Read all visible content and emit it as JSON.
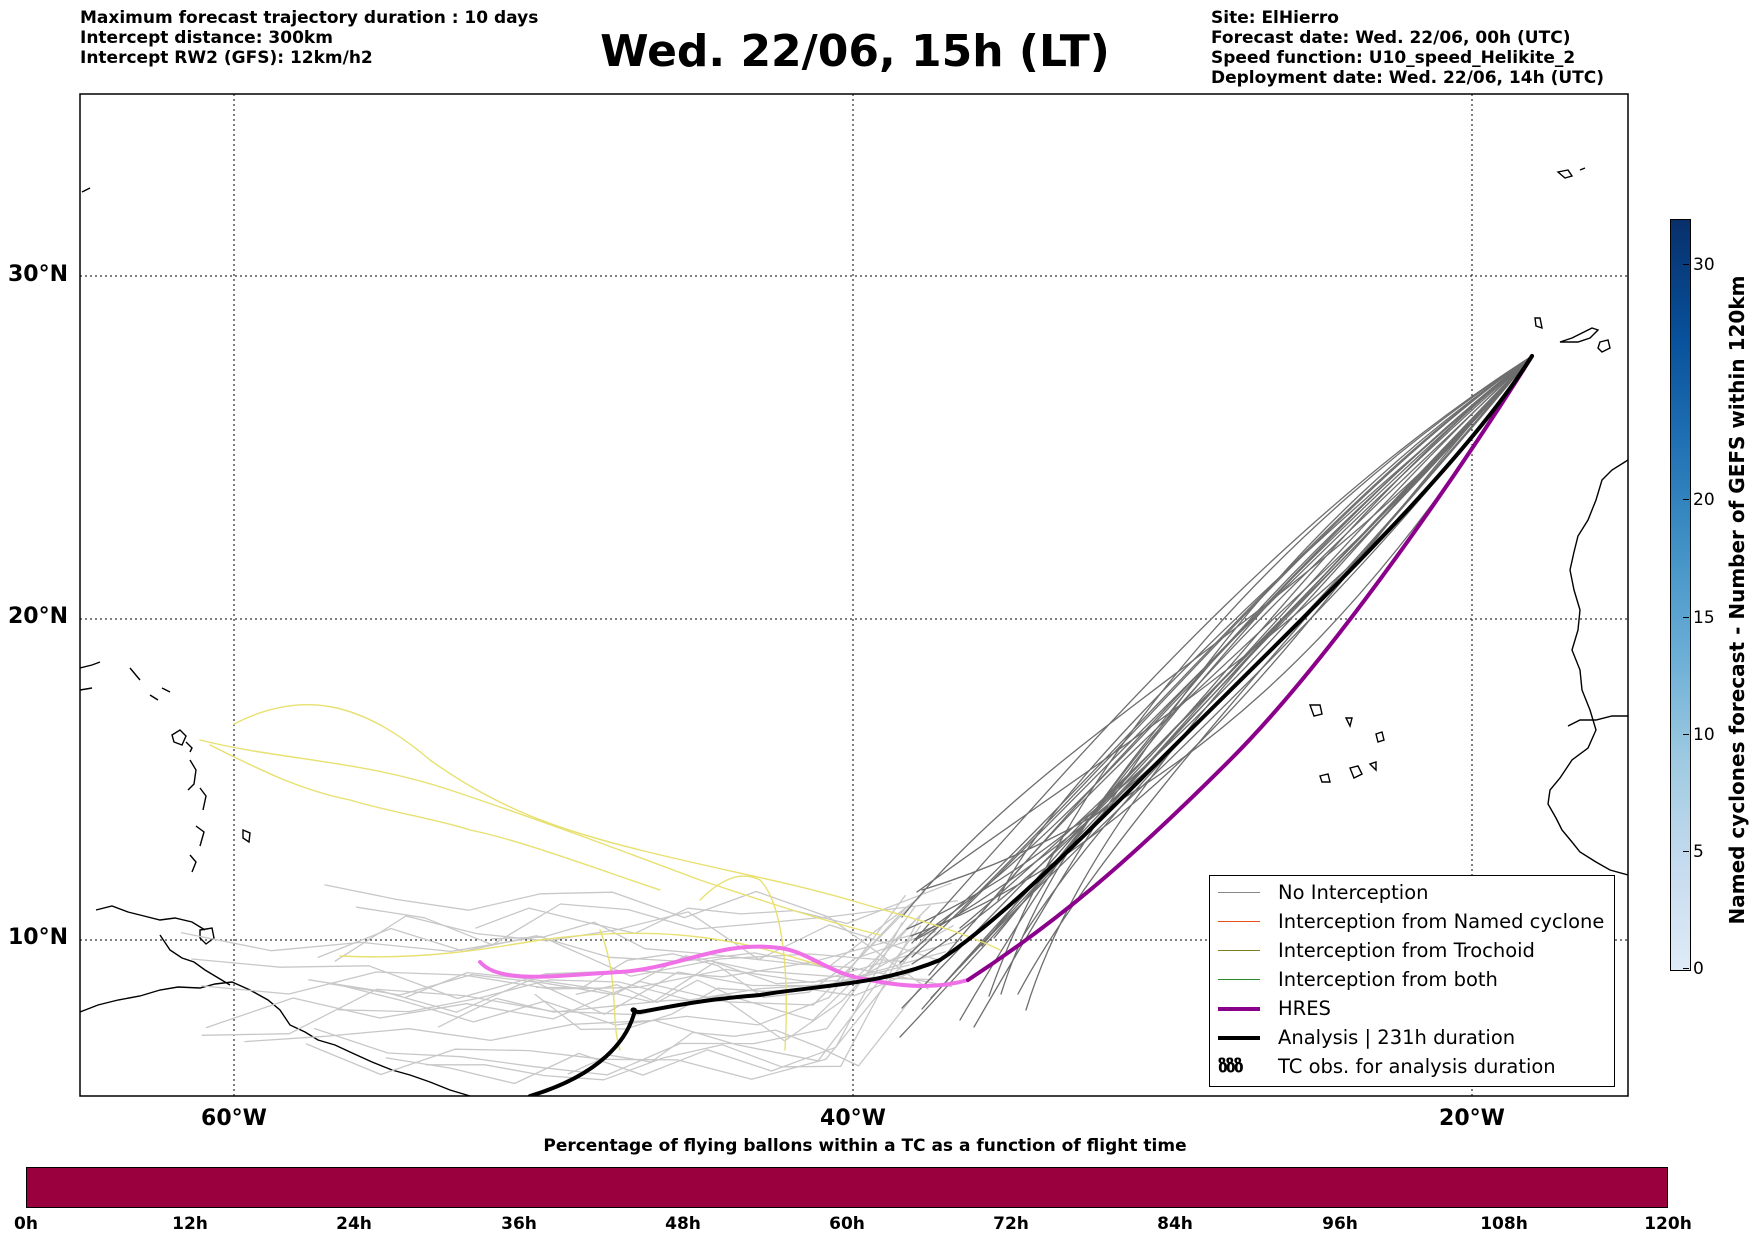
{
  "info_left": {
    "line1": "Maximum forecast trajectory duration : 10 days",
    "line2": "Intercept distance: 300km",
    "line3": "Intercept RW2 (GFS):  12km/h2"
  },
  "title": "Wed. 22/06, 15h (LT)",
  "info_right": {
    "line1": "Site: ElHierro",
    "line2": "Forecast date: Wed. 22/06, 00h (UTC)",
    "line3": "Speed function: U10_speed_Helikite_2",
    "line4": "Deployment date: Wed. 22/06, 14h (UTC)"
  },
  "map": {
    "lat_labels": [
      "30°N",
      "20°N",
      "10°N"
    ],
    "lon_labels": [
      "60°W",
      "40°W",
      "20°W"
    ],
    "lon_range": [
      -65,
      -15
    ],
    "lat_range": [
      5.3,
      34.6
    ],
    "grid": "dotted"
  },
  "legend": {
    "items": [
      {
        "label": "No Interception",
        "color": "#888888",
        "style": "line"
      },
      {
        "label": "Interception from Named cyclone",
        "color": "#e8501a",
        "style": "line"
      },
      {
        "label": "Interception from Trochoid",
        "color": "#7d7d1e",
        "style": "line"
      },
      {
        "label": "Interception from both",
        "color": "#2a8a2a",
        "style": "line"
      },
      {
        "label": "HRES",
        "color": "#8b008b",
        "style": "thick"
      },
      {
        "label": "Analysis | 231h duration",
        "color": "#000000",
        "style": "thick"
      },
      {
        "label": "TC obs. for analysis duration",
        "color": "#000000",
        "style": "symbol",
        "symbol": "ზზზ"
      }
    ]
  },
  "colorbar_right": {
    "label": "Named cyclones forecast - Number of GEFS within 120km",
    "ticks": [
      "0",
      "5",
      "10",
      "15",
      "20",
      "30"
    ],
    "range": [
      0,
      32
    ]
  },
  "colorbar_bottom": {
    "title": "Percentage of flying ballons within a TC as a function of flight time",
    "ticks": [
      "0h",
      "12h",
      "24h",
      "36h",
      "48h",
      "60h",
      "72h",
      "84h",
      "96h",
      "108h",
      "120h"
    ],
    "color": "#9b003e"
  }
}
